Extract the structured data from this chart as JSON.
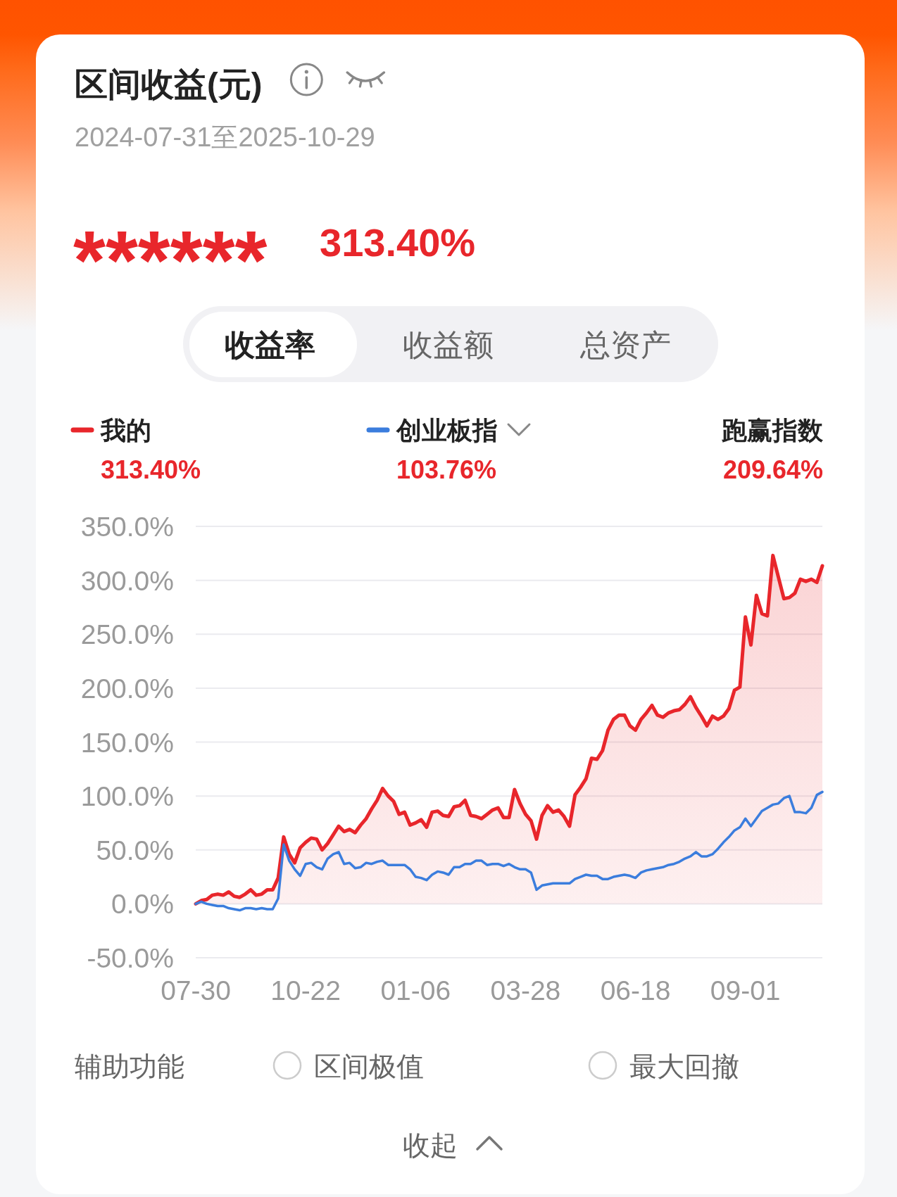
{
  "chart_data": {
    "type": "line",
    "title": "区间收益(元)",
    "subtitle": "2024-07-31至2025-10-29",
    "annotations": [
      "******",
      "313.40%",
      "收益率",
      "收益额",
      "总资产",
      "313.40%",
      "103.76%",
      "跑赢指数",
      "209.64%",
      "辅助功能",
      "区间极值",
      "最大回撤",
      "收起"
    ],
    "categories": [
      "07-30",
      null,
      null,
      null,
      null,
      null,
      null,
      null,
      null,
      null,
      null,
      null,
      null,
      null,
      null,
      null,
      null,
      null,
      null,
      null,
      "10-22",
      null,
      null,
      null,
      null,
      null,
      null,
      null,
      null,
      null,
      null,
      null,
      null,
      null,
      null,
      null,
      null,
      null,
      null,
      null,
      "01-06",
      null,
      null,
      null,
      null,
      null,
      null,
      null,
      null,
      null,
      null,
      null,
      null,
      null,
      null,
      null,
      null,
      null,
      null,
      null,
      "03-28",
      null,
      null,
      null,
      null,
      null,
      null,
      null,
      null,
      null,
      null,
      null,
      null,
      null,
      null,
      null,
      null,
      null,
      null,
      null,
      "06-18",
      null,
      null,
      null,
      null,
      null,
      null,
      null,
      null,
      null,
      null,
      null,
      null,
      null,
      null,
      null,
      null,
      null,
      null,
      null,
      "09-01",
      null,
      null,
      null,
      null,
      null,
      null,
      null,
      null,
      null,
      null,
      null,
      null,
      null,
      null
    ],
    "series": [
      {
        "name": "我的",
        "type": "area",
        "color": "#e8262b",
        "values": [
          0,
          3,
          4,
          8,
          9,
          8,
          11,
          7,
          6,
          9,
          13,
          8,
          9,
          13,
          13,
          24,
          62,
          46,
          38,
          52,
          57,
          61,
          60,
          50,
          56,
          64,
          72,
          67,
          69,
          66,
          73,
          79,
          88,
          96,
          107,
          100,
          95,
          83,
          85,
          73,
          75,
          78,
          71,
          85,
          86,
          82,
          81,
          90,
          91,
          96,
          82,
          81,
          79,
          83,
          87,
          89,
          80,
          80,
          106,
          93,
          83,
          77,
          60,
          82,
          91,
          85,
          87,
          81,
          72,
          101,
          108,
          116,
          135,
          134,
          142,
          161,
          171,
          175,
          175,
          165,
          161,
          171,
          177,
          184,
          175,
          173,
          177,
          179,
          180,
          185,
          192,
          182,
          174,
          165,
          174,
          171,
          174,
          181,
          198,
          201,
          266,
          240,
          286,
          269,
          267,
          323,
          303,
          283,
          284,
          288,
          301,
          299,
          301,
          298,
          313.4
        ]
      },
      {
        "name": "创业板指",
        "type": "line",
        "color": "#3b7ddd",
        "values": [
          0,
          2,
          0,
          -1,
          -2,
          -2,
          -4,
          -5,
          -6,
          -4,
          -4,
          -5,
          -4,
          -5,
          -5,
          5,
          55,
          40,
          32,
          26,
          37,
          38,
          34,
          32,
          42,
          46,
          48,
          37,
          38,
          33,
          34,
          38,
          37,
          39,
          40,
          36,
          36,
          36,
          36,
          32,
          25,
          24,
          22,
          27,
          30,
          29,
          27,
          34,
          34,
          37,
          37,
          40,
          40,
          36,
          37,
          37,
          35,
          37,
          34,
          32,
          32,
          29,
          13,
          17,
          18,
          19,
          19,
          19,
          19,
          23,
          25,
          27,
          26,
          26,
          23,
          23,
          25,
          26,
          27,
          26,
          24,
          29,
          31,
          32,
          33,
          34,
          36,
          37,
          39,
          42,
          44,
          48,
          44,
          44,
          46,
          51,
          57,
          62,
          68,
          71,
          79,
          72,
          79,
          86,
          89,
          92,
          93,
          98,
          100,
          85,
          85,
          84,
          89,
          101,
          103.76
        ]
      }
    ],
    "ylim": [
      -50,
      350
    ],
    "yticks": [
      {
        "value": -50,
        "label": "-50.0%"
      },
      {
        "value": 0,
        "label": "0.0%"
      },
      {
        "value": 50,
        "label": "50.0%"
      },
      {
        "value": 100,
        "label": "100.0%"
      },
      {
        "value": 150,
        "label": "150.0%"
      },
      {
        "value": 200,
        "label": "200.0%"
      },
      {
        "value": 250,
        "label": "250.0%"
      },
      {
        "value": 300,
        "label": "300.0%"
      },
      {
        "value": 350,
        "label": "350.0%"
      }
    ],
    "grid": "y",
    "legend": "top"
  }
}
